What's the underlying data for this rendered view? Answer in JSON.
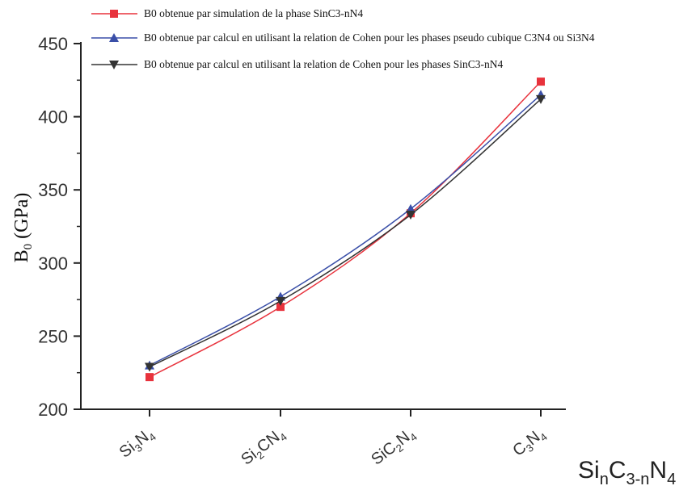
{
  "chart_data": {
    "type": "line",
    "categories": [
      {
        "base": "Si",
        "sub1": "3",
        "mid": "N",
        "sub2": "4"
      },
      {
        "base": "Si",
        "sub1": "2",
        "mid": "CN",
        "sub2": "4"
      },
      {
        "base": "SiC",
        "sub1": "2",
        "mid": "N",
        "sub2": "4"
      },
      {
        "base": "C",
        "sub1": "3",
        "mid": "N",
        "sub2": "4"
      }
    ],
    "xlabel": {
      "base": "Si",
      "sub1": "n",
      "mid": "C",
      "sub2": "3-n",
      "end": "N",
      "sub3": "4"
    },
    "ylabel": {
      "base": "B",
      "sub": "0",
      "rest": " (GPa)"
    },
    "ylim": [
      200,
      450
    ],
    "yticks": [
      "200",
      "250",
      "300",
      "350",
      "400",
      "450"
    ],
    "legend_position": "top-left",
    "series": [
      {
        "name": "B0 obtenue par simulation de la phase SinC3-nN4",
        "marker": "square",
        "color": "#e8323c",
        "values": [
          222,
          270,
          334,
          424
        ]
      },
      {
        "name": "B0 obtenue par calcul en utilisant la relation de Cohen pour les phases pseudo cubique C3N4 ou Si3N4",
        "marker": "triangle-up",
        "color": "#3a4fa8",
        "values": [
          230,
          277,
          337,
          415
        ]
      },
      {
        "name": "B0 obtenue par calcul en utilisant la relation de Cohen pour les phases SinC3-nN4",
        "marker": "triangle-down",
        "color": "#333333",
        "values": [
          229,
          274,
          333,
          412
        ]
      }
    ]
  }
}
